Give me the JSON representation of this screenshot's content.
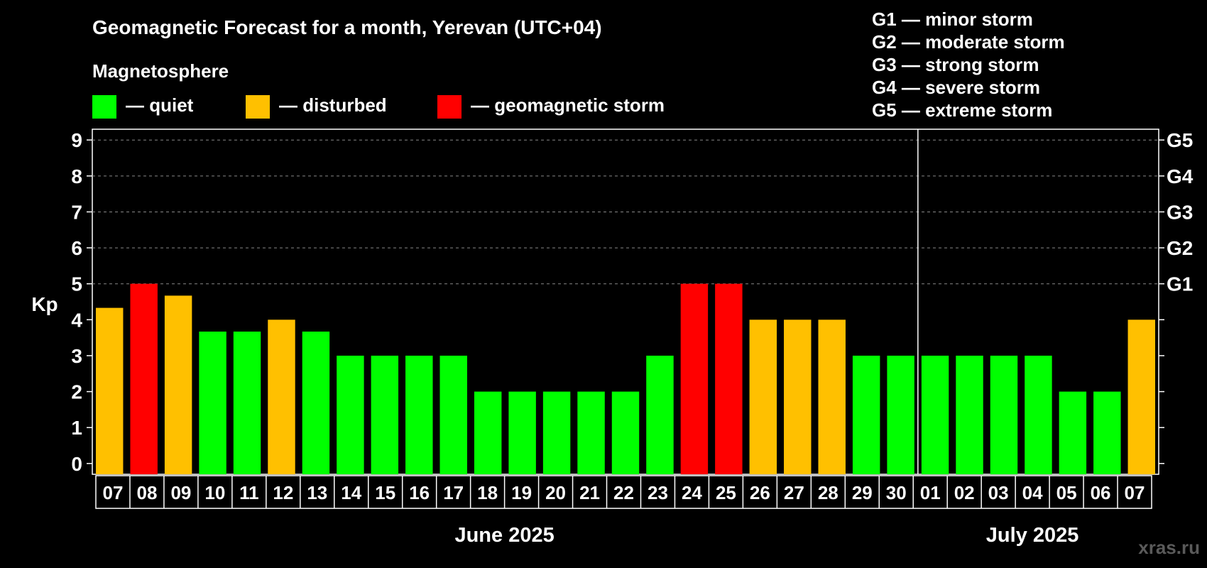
{
  "chart_data": {
    "type": "bar",
    "title": "Geomagnetic Forecast for a month, Yerevan (UTC+04)",
    "legend_title": "Magnetosphere",
    "legend": [
      {
        "key": "quiet",
        "label": "— quiet",
        "color": "#00ff00"
      },
      {
        "key": "disturbed",
        "label": "— disturbed",
        "color": "#ffc000"
      },
      {
        "key": "storm",
        "label": "— geomagnetic storm",
        "color": "#ff0000"
      }
    ],
    "storm_scale": [
      "G1 — minor storm",
      "G2 — moderate storm",
      "G3 — strong storm",
      "G4 — severe storm",
      "G5 — extreme storm"
    ],
    "ylabel": "Kp",
    "ylim": [
      -0.3,
      9.3
    ],
    "yticks": [
      "0",
      "1",
      "2",
      "3",
      "4",
      "5",
      "6",
      "7",
      "8",
      "9"
    ],
    "right_labels": [
      {
        "kp": 5,
        "label": "G1"
      },
      {
        "kp": 6,
        "label": "G2"
      },
      {
        "kp": 7,
        "label": "G3"
      },
      {
        "kp": 8,
        "label": "G4"
      },
      {
        "kp": 9,
        "label": "G5"
      }
    ],
    "grid": "dashed, Kp 5 to 9",
    "categories": [
      "07",
      "08",
      "09",
      "10",
      "11",
      "12",
      "13",
      "14",
      "15",
      "16",
      "17",
      "18",
      "19",
      "20",
      "21",
      "22",
      "23",
      "24",
      "25",
      "26",
      "27",
      "28",
      "29",
      "30",
      "01",
      "02",
      "03",
      "04",
      "05",
      "06",
      "07"
    ],
    "values": [
      4.33,
      5,
      4.67,
      3.67,
      3.67,
      4,
      3.67,
      3,
      3,
      3,
      3,
      2,
      2,
      2,
      2,
      2,
      3,
      5,
      5,
      4,
      4,
      4,
      3,
      3,
      3,
      3,
      3,
      3,
      2,
      2,
      4
    ],
    "levels": [
      "disturbed",
      "storm",
      "disturbed",
      "quiet",
      "quiet",
      "disturbed",
      "quiet",
      "quiet",
      "quiet",
      "quiet",
      "quiet",
      "quiet",
      "quiet",
      "quiet",
      "quiet",
      "quiet",
      "quiet",
      "storm",
      "storm",
      "disturbed",
      "disturbed",
      "disturbed",
      "quiet",
      "quiet",
      "quiet",
      "quiet",
      "quiet",
      "quiet",
      "quiet",
      "quiet",
      "disturbed"
    ],
    "months": [
      {
        "label": "June 2025",
        "first_index": 0,
        "last_index": 23
      },
      {
        "label": "July 2025",
        "first_index": 24,
        "last_index": 30
      }
    ],
    "watermark": "xras.ru"
  }
}
